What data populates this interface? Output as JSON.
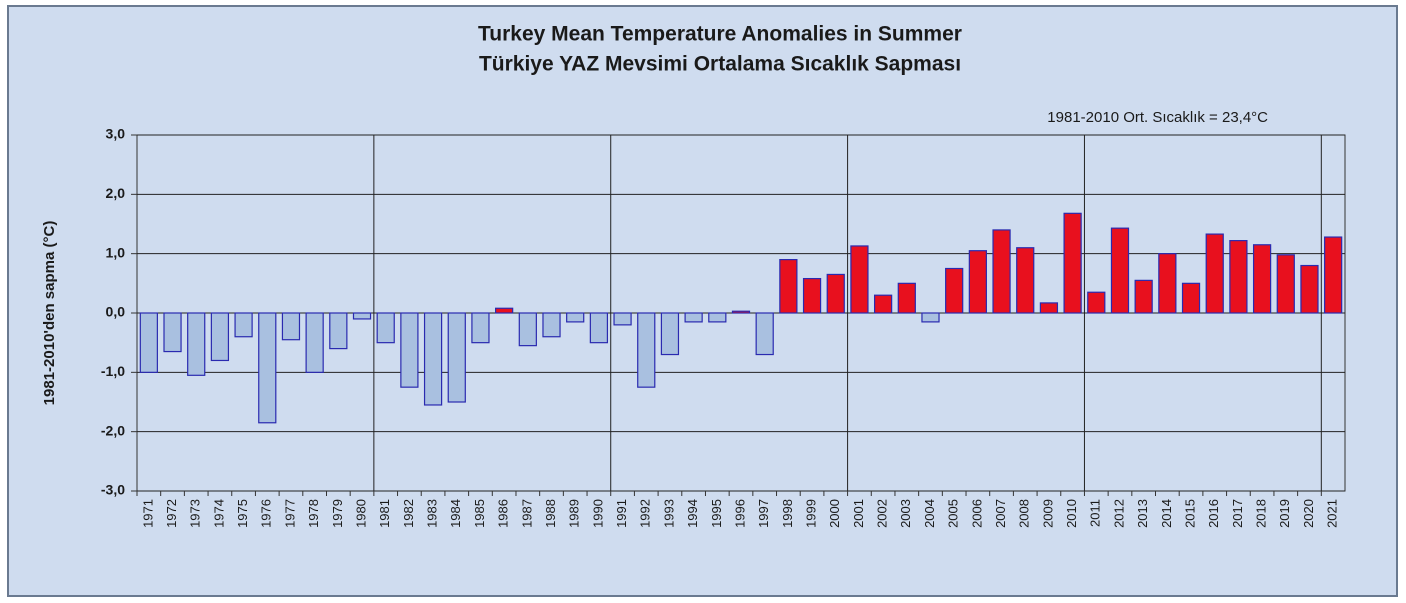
{
  "chart_data": {
    "type": "bar",
    "title": "Turkey Mean Temperature Anomalies  in Summer",
    "subtitle": "Türkiye  YAZ  Mevsimi Ortalama  Sıcaklık  Sapması",
    "annotation": "1981-2010 Ort.  Sıcaklık  =  23,4°C",
    "y_label": "1981-2010'den sapma (°C)",
    "categories": [
      "1971",
      "1972",
      "1973",
      "1974",
      "1975",
      "1976",
      "1977",
      "1978",
      "1979",
      "1980",
      "1981",
      "1982",
      "1983",
      "1984",
      "1985",
      "1986",
      "1987",
      "1988",
      "1989",
      "1990",
      "1991",
      "1992",
      "1993",
      "1994",
      "1995",
      "1996",
      "1997",
      "1998",
      "1999",
      "2000",
      "2001",
      "2002",
      "2003",
      "2004",
      "2005",
      "2006",
      "2007",
      "2008",
      "2009",
      "2010",
      "2011",
      "2012",
      "2013",
      "2014",
      "2015",
      "2016",
      "2017",
      "2018",
      "2019",
      "2020",
      "2021"
    ],
    "values": [
      -1.0,
      -0.65,
      -1.05,
      -0.8,
      -0.4,
      -1.85,
      -0.45,
      -1.0,
      -0.6,
      -0.1,
      -0.5,
      -1.25,
      -1.55,
      -1.5,
      -0.5,
      0.08,
      -0.55,
      -0.4,
      -0.15,
      -0.5,
      -0.2,
      -1.25,
      -0.7,
      -0.15,
      -0.15,
      0.03,
      -0.7,
      0.9,
      0.58,
      0.65,
      1.13,
      0.3,
      0.5,
      -0.15,
      0.75,
      1.05,
      1.4,
      1.1,
      0.17,
      1.68,
      0.35,
      1.43,
      0.55,
      1.0,
      0.5,
      1.33,
      1.22,
      1.15,
      0.98,
      0.8,
      1.28
    ],
    "positive_color": "#e8101e",
    "negative_color": "#a9c0e0",
    "edge_color": "#2a2ab0",
    "ylim": [
      -3,
      3
    ],
    "yticks": [
      {
        "value": -3,
        "label": "-3,0"
      },
      {
        "value": -2,
        "label": "-2,0"
      },
      {
        "value": -1,
        "label": "-1,0"
      },
      {
        "value": 0,
        "label": "0,0"
      },
      {
        "value": 1,
        "label": "1,0"
      },
      {
        "value": 2,
        "label": "2,0"
      },
      {
        "value": 3,
        "label": "3,0"
      }
    ],
    "grid": true
  }
}
